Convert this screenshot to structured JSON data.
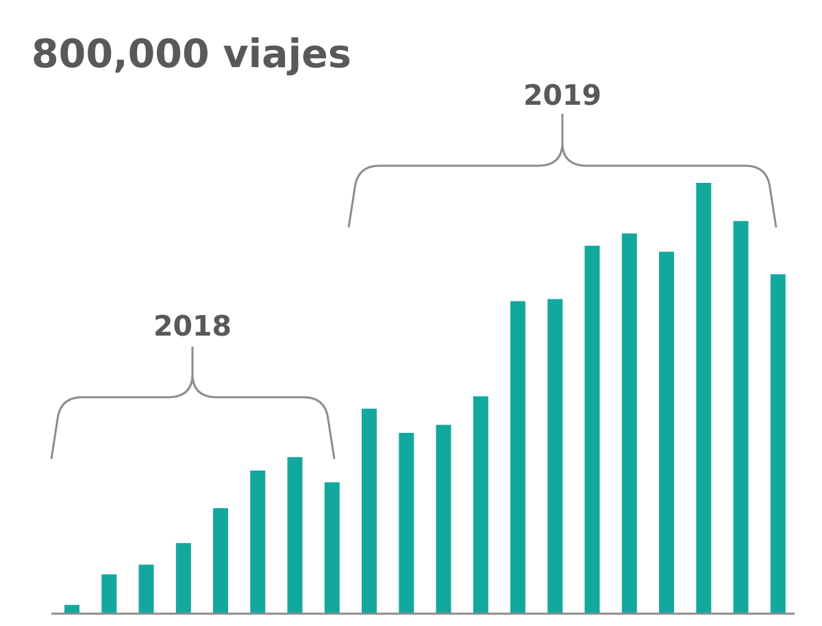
{
  "chart_data": {
    "type": "bar",
    "title": "800,000 viajes",
    "xlabel": "",
    "ylabel": "",
    "ylim": [
      0,
      800000
    ],
    "grid": false,
    "legend": "none",
    "series": [
      {
        "values": [
          15000,
          72000,
          90000,
          130000,
          195000,
          265000,
          290000,
          243000,
          380000,
          335000,
          350000,
          403000,
          580000,
          584000,
          683000,
          706000,
          672000,
          800000,
          729000,
          630000
        ],
        "color": "#13a89e"
      }
    ],
    "annotations": [
      {
        "label": "2018",
        "from": 0,
        "to": 7
      },
      {
        "label": "2019",
        "from": 8,
        "to": 19
      }
    ],
    "colors": {
      "bar": "#13a89e",
      "text": "#595959",
      "bracket": "#8c8c8c",
      "axis": "#8c8c8c"
    }
  }
}
